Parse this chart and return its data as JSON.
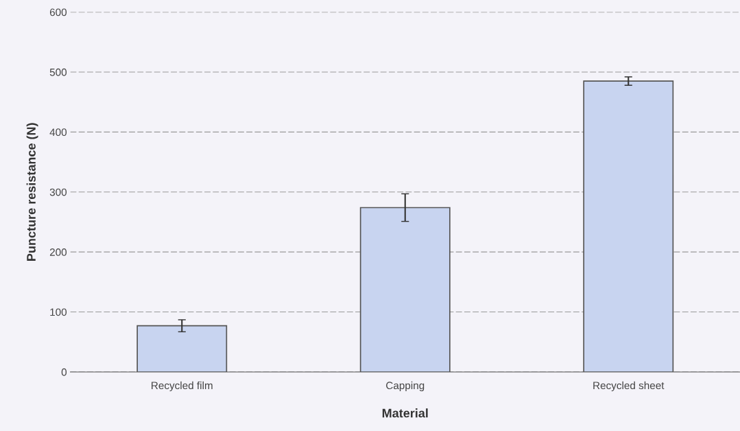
{
  "chart_data": {
    "type": "bar",
    "xlabel": "Material",
    "ylabel": "Puncture resistance (N)",
    "categories": [
      "Recycled film",
      "Capping",
      "Recycled sheet"
    ],
    "values": [
      77,
      274,
      485
    ],
    "errors": [
      10,
      23,
      7
    ],
    "color": "#c8d4f0",
    "ylim": [
      0,
      600
    ],
    "yticks": [
      0,
      100,
      200,
      300,
      400,
      500,
      600
    ],
    "grid": "y"
  }
}
